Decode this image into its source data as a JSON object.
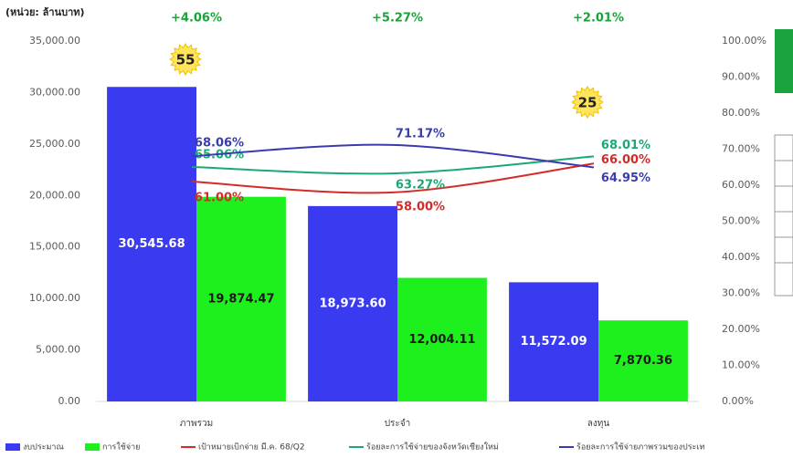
{
  "chart_data": {
    "type": "bar",
    "title": "(หน่วย: ล้านบาท)",
    "categories": [
      "ภาพรวม",
      "ประจำ",
      "ลงทุน"
    ],
    "annotations": [
      "+4.06%",
      "+5.27%",
      "+2.01%"
    ],
    "badges": [
      "55",
      null,
      "25"
    ],
    "series": [
      {
        "name": "งบประมาณ",
        "color": "#3a3af0",
        "values": [
          30545.68,
          18973.6,
          11572.09
        ],
        "value_labels": [
          "30,545.68",
          "18,973.60",
          "11,572.09"
        ]
      },
      {
        "name": "การใช้จ่าย",
        "color": "#1ef01e",
        "values": [
          19874.47,
          12004.11,
          7870.36
        ],
        "value_labels": [
          "19,874.47",
          "12,004.11",
          "7,870.36"
        ]
      },
      {
        "name": "เป้าหมายเบิกจ่าย มี.ค. 68/Q2",
        "color": "#d42a2a",
        "type": "line",
        "axis": "y2",
        "values": [
          61.0,
          58.0,
          66.0
        ],
        "value_labels": [
          "61.00%",
          "58.00%",
          "66.00%"
        ]
      },
      {
        "name": "ร้อยละการใช้จ่ายของจังหวัดเชียงใหม่",
        "color": "#1aa874",
        "type": "line",
        "axis": "y2",
        "values": [
          65.06,
          63.27,
          68.01
        ],
        "value_labels": [
          "65.06%",
          "63.27%",
          "68.01%"
        ]
      },
      {
        "name": "ร้อยละการใช้จ่ายภาพรวมของประเท",
        "color": "#3b3bb0",
        "type": "line",
        "axis": "y2",
        "values": [
          68.06,
          71.17,
          64.95
        ],
        "value_labels": [
          "68.06%",
          "71.17%",
          "64.95%"
        ]
      }
    ],
    "ylim": [
      0,
      35000
    ],
    "yticks": [
      {
        "value": 0,
        "label": "0.00"
      },
      {
        "value": 5000,
        "label": "5,000.00"
      },
      {
        "value": 10000,
        "label": "10,000.00"
      },
      {
        "value": 15000,
        "label": "15,000.00"
      },
      {
        "value": 20000,
        "label": "20,000.00"
      },
      {
        "value": 25000,
        "label": "25,000.00"
      },
      {
        "value": 30000,
        "label": "30,000.00"
      },
      {
        "value": 35000,
        "label": "35,000.00"
      }
    ],
    "y2lim": [
      0,
      100
    ],
    "y2ticks": [
      {
        "value": 0,
        "label": "0.00%"
      },
      {
        "value": 10,
        "label": "10.00%"
      },
      {
        "value": 20,
        "label": "20.00%"
      },
      {
        "value": 30,
        "label": "30.00%"
      },
      {
        "value": 40,
        "label": "40.00%"
      },
      {
        "value": 50,
        "label": "50.00%"
      },
      {
        "value": 60,
        "label": "60.00%"
      },
      {
        "value": 70,
        "label": "70.00%"
      },
      {
        "value": 80,
        "label": "80.00%"
      },
      {
        "value": 90,
        "label": "90.00%"
      },
      {
        "value": 100,
        "label": "100.00%"
      }
    ]
  }
}
